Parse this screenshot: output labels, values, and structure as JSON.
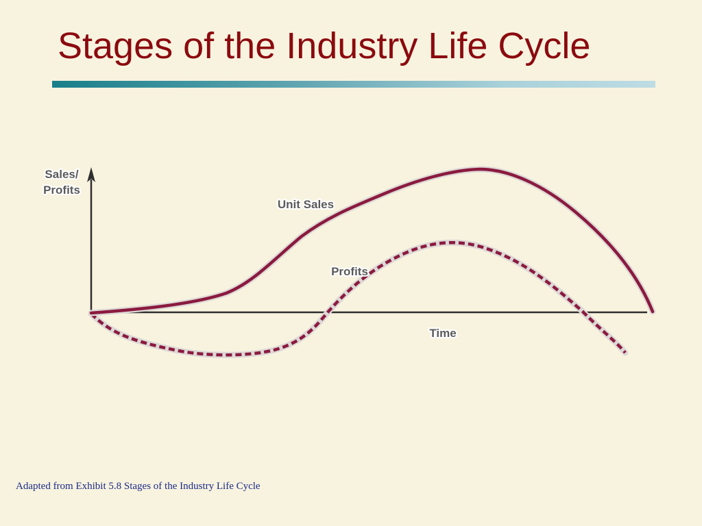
{
  "slide": {
    "title": "Stages of the Industry Life Cycle",
    "footnote": "Adapted from Exhibit 5.8 Stages of the Industry Life Cycle"
  },
  "diagram": {
    "y_axis_label_line1": "Sales/",
    "y_axis_label_line2": "Profits",
    "x_axis_label": "Time",
    "curve_labels": {
      "unit_sales": "Unit Sales",
      "profits": "Profits"
    },
    "colors": {
      "curve": "#8B1A3E",
      "curve_halo": "#DDD8D6",
      "axis": "#2E2E2E",
      "title": "#8B0A0F",
      "footnote": "#1B2A88"
    }
  }
}
